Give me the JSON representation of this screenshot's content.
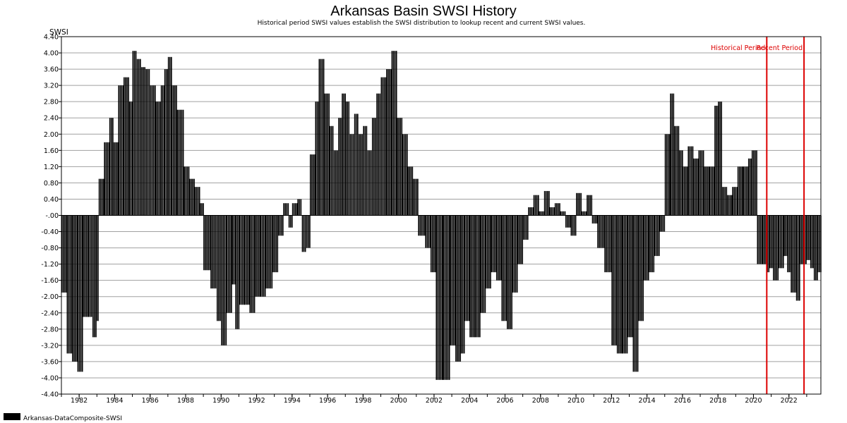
{
  "chart_data": {
    "type": "bar",
    "title": "Arkansas Basin SWSI History",
    "subtitle": "Historical period SWSI values establish the SWSI distribution to lookup recent and current SWSI values.",
    "ylabel": "SWSI",
    "xlabel": "",
    "ylim": [
      -4.4,
      4.4
    ],
    "xlim": [
      1981.0,
      2023.8
    ],
    "grid": true,
    "y_ticks": [
      {
        "value": 4.4,
        "label": "4.40"
      },
      {
        "value": 4.0,
        "label": "4.00"
      },
      {
        "value": 3.6,
        "label": "3.60"
      },
      {
        "value": 3.2,
        "label": "3.20"
      },
      {
        "value": 2.8,
        "label": "2.80"
      },
      {
        "value": 2.4,
        "label": "2.40"
      },
      {
        "value": 2.0,
        "label": "2.00"
      },
      {
        "value": 1.6,
        "label": "1.60"
      },
      {
        "value": 1.2,
        "label": "1.20"
      },
      {
        "value": 0.8,
        "label": "0.80"
      },
      {
        "value": 0.4,
        "label": "0.40"
      },
      {
        "value": 0.0,
        "label": "-.00"
      },
      {
        "value": -0.4,
        "label": "-0.40"
      },
      {
        "value": -0.8,
        "label": "-0.80"
      },
      {
        "value": -1.2,
        "label": "-1.20"
      },
      {
        "value": -1.6,
        "label": "-1.60"
      },
      {
        "value": -2.0,
        "label": "-2.00"
      },
      {
        "value": -2.4,
        "label": "-2.40"
      },
      {
        "value": -2.8,
        "label": "-2.80"
      },
      {
        "value": -3.2,
        "label": "-3.20"
      },
      {
        "value": -3.6,
        "label": "-3.60"
      },
      {
        "value": -4.0,
        "label": "-4.00"
      },
      {
        "value": -4.4,
        "label": "-4.40"
      }
    ],
    "x_tick_labels": [
      "1982",
      "1984",
      "1986",
      "1988",
      "1990",
      "1992",
      "1994",
      "1996",
      "1998",
      "2000",
      "2002",
      "2004",
      "2006",
      "2008",
      "2010",
      "2012",
      "2014",
      "2016",
      "2018",
      "2020",
      "2022"
    ],
    "annotations": [
      {
        "text": "Historical Period",
        "x": 2020.75,
        "color": "#dd0000"
      },
      {
        "text": "Recent Period",
        "x": 2022.85,
        "color": "#dd0000"
      }
    ],
    "series": [
      {
        "name": "Arkansas-DataComposite-SWSI",
        "color": "#000000",
        "points": [
          [
            1981.0,
            -1.9
          ],
          [
            1981.3,
            -3.4
          ],
          [
            1981.6,
            -3.6
          ],
          [
            1981.9,
            -3.85
          ],
          [
            1982.2,
            -2.5
          ],
          [
            1982.5,
            -2.5
          ],
          [
            1982.75,
            -3.0
          ],
          [
            1982.95,
            -2.6
          ],
          [
            1983.1,
            0.9
          ],
          [
            1983.4,
            1.8
          ],
          [
            1983.7,
            2.4
          ],
          [
            1983.9,
            1.8
          ],
          [
            1984.2,
            3.2
          ],
          [
            1984.5,
            3.4
          ],
          [
            1984.8,
            2.8
          ],
          [
            1985.0,
            4.05
          ],
          [
            1985.25,
            3.85
          ],
          [
            1985.5,
            3.65
          ],
          [
            1985.75,
            3.6
          ],
          [
            1986.0,
            3.2
          ],
          [
            1986.3,
            2.8
          ],
          [
            1986.6,
            3.2
          ],
          [
            1986.8,
            3.6
          ],
          [
            1987.0,
            3.9
          ],
          [
            1987.2,
            3.2
          ],
          [
            1987.5,
            2.6
          ],
          [
            1987.9,
            1.2
          ],
          [
            1988.2,
            0.9
          ],
          [
            1988.5,
            0.7
          ],
          [
            1988.8,
            0.3
          ],
          [
            1989.0,
            -1.35
          ],
          [
            1989.4,
            -1.8
          ],
          [
            1989.75,
            -2.6
          ],
          [
            1990.0,
            -3.2
          ],
          [
            1990.3,
            -2.4
          ],
          [
            1990.6,
            -1.7
          ],
          [
            1990.8,
            -2.8
          ],
          [
            1991.0,
            -2.2
          ],
          [
            1991.3,
            -2.2
          ],
          [
            1991.6,
            -2.4
          ],
          [
            1991.9,
            -2.0
          ],
          [
            1992.2,
            -2.0
          ],
          [
            1992.5,
            -1.8
          ],
          [
            1992.9,
            -1.4
          ],
          [
            1993.2,
            -0.5
          ],
          [
            1993.5,
            0.3
          ],
          [
            1993.8,
            -0.3
          ],
          [
            1994.0,
            0.3
          ],
          [
            1994.3,
            0.4
          ],
          [
            1994.55,
            -0.9
          ],
          [
            1994.8,
            -0.8
          ],
          [
            1995.0,
            1.5
          ],
          [
            1995.3,
            2.8
          ],
          [
            1995.5,
            3.85
          ],
          [
            1995.8,
            3.0
          ],
          [
            1996.1,
            2.2
          ],
          [
            1996.35,
            1.6
          ],
          [
            1996.6,
            2.4
          ],
          [
            1996.8,
            3.0
          ],
          [
            1997.0,
            2.8
          ],
          [
            1997.25,
            2.0
          ],
          [
            1997.5,
            2.5
          ],
          [
            1997.75,
            2.0
          ],
          [
            1998.0,
            2.2
          ],
          [
            1998.25,
            1.6
          ],
          [
            1998.5,
            2.4
          ],
          [
            1998.75,
            3.0
          ],
          [
            1999.0,
            3.4
          ],
          [
            1999.3,
            3.6
          ],
          [
            1999.6,
            4.05
          ],
          [
            1999.9,
            2.4
          ],
          [
            2000.2,
            2.0
          ],
          [
            2000.5,
            1.2
          ],
          [
            2000.8,
            0.9
          ],
          [
            2001.1,
            -0.5
          ],
          [
            2001.5,
            -0.8
          ],
          [
            2001.8,
            -1.4
          ],
          [
            2002.1,
            -4.05
          ],
          [
            2002.5,
            -4.05
          ],
          [
            2002.9,
            -3.2
          ],
          [
            2003.2,
            -3.6
          ],
          [
            2003.5,
            -3.4
          ],
          [
            2003.7,
            -2.6
          ],
          [
            2004.0,
            -3.0
          ],
          [
            2004.3,
            -3.0
          ],
          [
            2004.6,
            -2.4
          ],
          [
            2004.9,
            -1.8
          ],
          [
            2005.2,
            -1.4
          ],
          [
            2005.5,
            -1.6
          ],
          [
            2005.8,
            -2.6
          ],
          [
            2006.1,
            -2.8
          ],
          [
            2006.4,
            -1.9
          ],
          [
            2006.7,
            -1.2
          ],
          [
            2007.0,
            -0.6
          ],
          [
            2007.3,
            0.2
          ],
          [
            2007.6,
            0.5
          ],
          [
            2007.9,
            0.1
          ],
          [
            2008.2,
            0.6
          ],
          [
            2008.5,
            0.2
          ],
          [
            2008.8,
            0.3
          ],
          [
            2009.1,
            0.1
          ],
          [
            2009.4,
            -0.3
          ],
          [
            2009.7,
            -0.5
          ],
          [
            2010.0,
            0.55
          ],
          [
            2010.3,
            0.1
          ],
          [
            2010.6,
            0.5
          ],
          [
            2010.9,
            -0.2
          ],
          [
            2011.2,
            -0.8
          ],
          [
            2011.6,
            -1.4
          ],
          [
            2012.0,
            -3.2
          ],
          [
            2012.3,
            -3.4
          ],
          [
            2012.6,
            -3.4
          ],
          [
            2012.9,
            -3.0
          ],
          [
            2013.2,
            -3.85
          ],
          [
            2013.5,
            -2.6
          ],
          [
            2013.8,
            -1.6
          ],
          [
            2014.1,
            -1.4
          ],
          [
            2014.4,
            -1.0
          ],
          [
            2014.7,
            -0.4
          ],
          [
            2015.0,
            2.0
          ],
          [
            2015.3,
            3.0
          ],
          [
            2015.5,
            2.2
          ],
          [
            2015.8,
            1.6
          ],
          [
            2016.0,
            1.2
          ],
          [
            2016.3,
            1.7
          ],
          [
            2016.6,
            1.4
          ],
          [
            2016.9,
            1.6
          ],
          [
            2017.2,
            1.2
          ],
          [
            2017.5,
            1.2
          ],
          [
            2017.8,
            2.7
          ],
          [
            2018.0,
            2.8
          ],
          [
            2018.2,
            0.7
          ],
          [
            2018.5,
            0.5
          ],
          [
            2018.8,
            0.7
          ],
          [
            2019.1,
            1.2
          ],
          [
            2019.4,
            1.2
          ],
          [
            2019.7,
            1.4
          ],
          [
            2019.9,
            1.6
          ],
          [
            2020.2,
            -1.2
          ],
          [
            2020.5,
            -1.2
          ],
          [
            2020.75,
            -1.4
          ],
          [
            2020.9,
            -1.3
          ],
          [
            2021.1,
            -1.6
          ],
          [
            2021.4,
            -1.3
          ],
          [
            2021.7,
            -1.0
          ],
          [
            2021.9,
            -1.4
          ],
          [
            2022.1,
            -1.9
          ],
          [
            2022.4,
            -2.1
          ],
          [
            2022.6,
            -1.2
          ],
          [
            2022.85,
            -1.2
          ],
          [
            2023.0,
            -1.1
          ],
          [
            2023.2,
            -1.3
          ],
          [
            2023.4,
            -1.6
          ],
          [
            2023.6,
            -1.4
          ]
        ]
      }
    ]
  }
}
